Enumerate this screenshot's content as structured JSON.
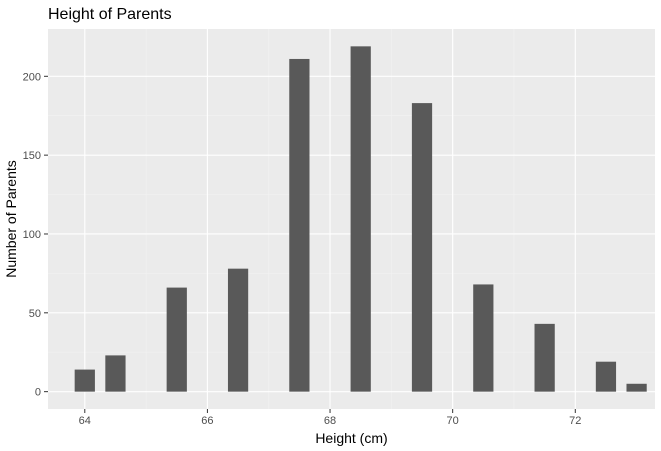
{
  "chart_data": {
    "type": "bar",
    "title": "Height of Parents",
    "xlabel": "Height (cm)",
    "ylabel": "Number of Parents",
    "x": [
      64.0,
      64.5,
      65.5,
      66.5,
      67.5,
      68.5,
      69.5,
      70.5,
      71.5,
      72.5,
      73.0
    ],
    "values": [
      14,
      23,
      66,
      78,
      211,
      219,
      183,
      68,
      43,
      19,
      5
    ],
    "bin_width": 0.33,
    "xlim": [
      63.4,
      73.3
    ],
    "ylim": [
      -11,
      230
    ],
    "x_ticks": [
      64,
      66,
      68,
      70,
      72
    ],
    "y_ticks": [
      0,
      50,
      100,
      150,
      200
    ],
    "grid": true,
    "colors": {
      "bar": "#595959",
      "panel": "#ebebeb",
      "grid_major": "#ffffff",
      "grid_minor": "#f2f2f2",
      "tick_text": "#4d4d4d"
    }
  }
}
